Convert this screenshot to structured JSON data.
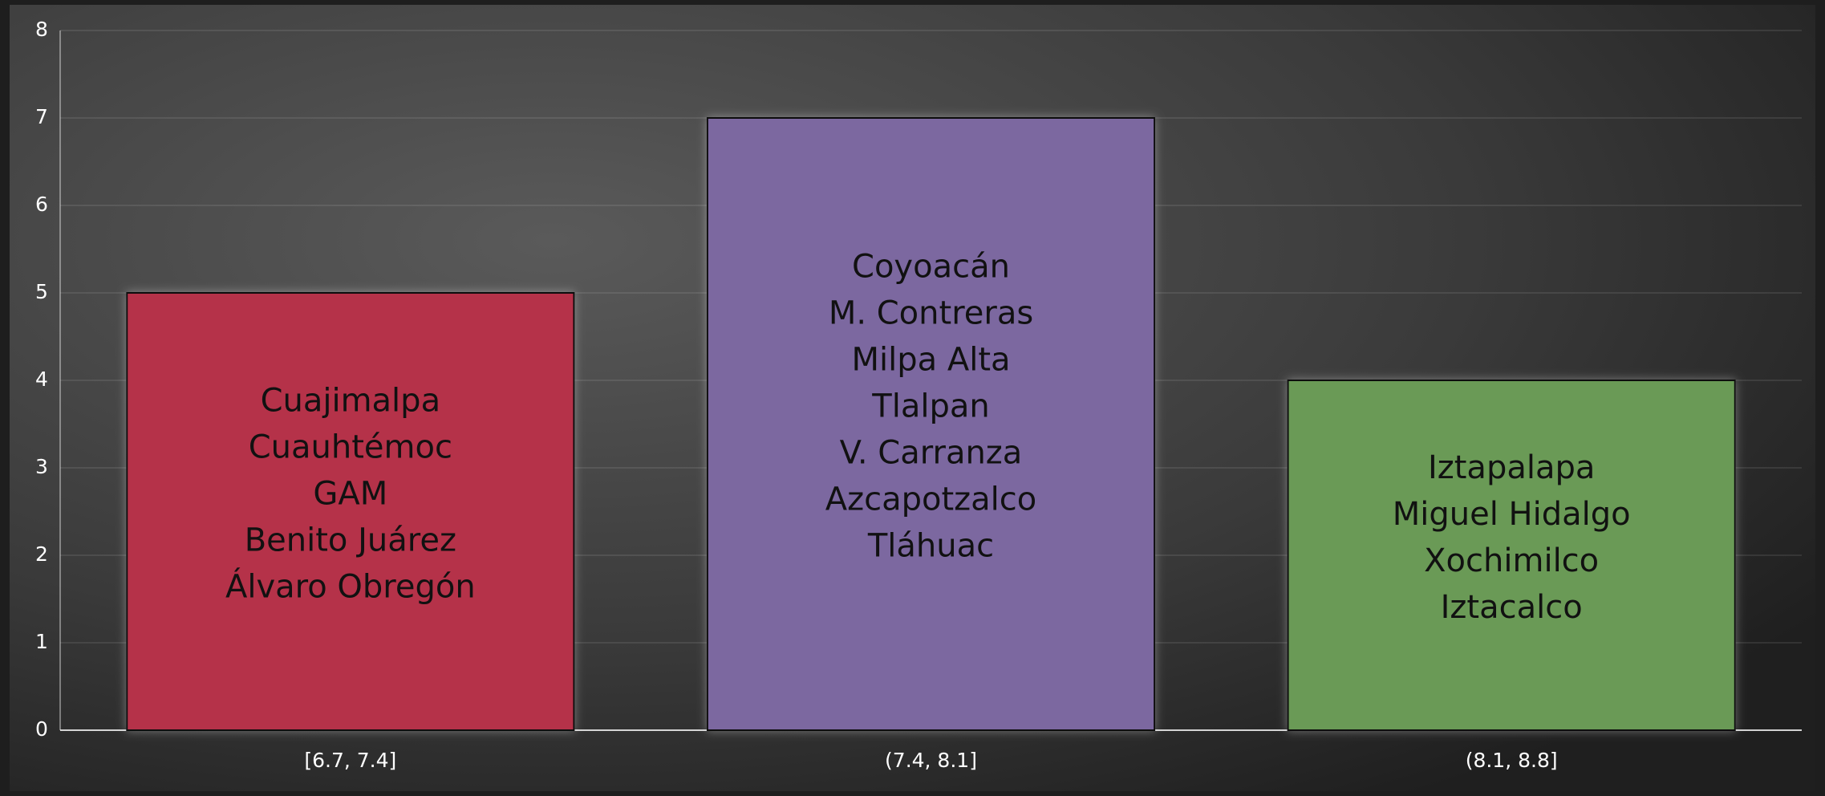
{
  "chart_data": {
    "type": "bar",
    "categories": [
      "[6.7, 7.4]",
      "(7.4, 8.1]",
      "(8.1, 8.8]"
    ],
    "values": [
      5,
      7,
      4
    ],
    "colors": [
      "#b5314a",
      "#7c68a0",
      "#6a9a56"
    ],
    "bar_labels": [
      [
        "Cuajimalpa",
        "Cuauhtémoc",
        "GAM",
        "Benito Juárez",
        "Álvaro Obregón"
      ],
      [
        "Coyoacán",
        "M. Contreras",
        "Milpa Alta",
        "Tlalpan",
        "V. Carranza",
        "Azcapotzalco",
        "Tláhuac"
      ],
      [
        "Iztapalapa",
        "Miguel Hidalgo",
        "Xochimilco",
        "Iztacalco"
      ]
    ],
    "ylim": [
      0,
      8
    ],
    "yticks": [
      0,
      1,
      2,
      3,
      4,
      5,
      6,
      7,
      8
    ],
    "grid": true
  }
}
